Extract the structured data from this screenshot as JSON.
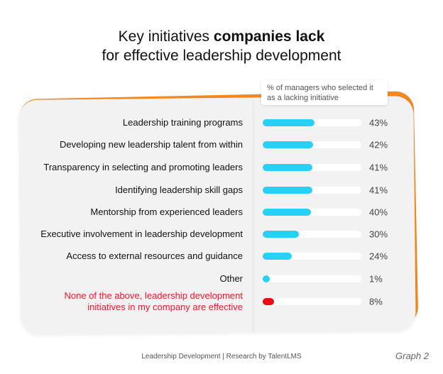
{
  "chart_data": {
    "type": "bar",
    "orientation": "horizontal",
    "title_line1_normal": "Key initiatives ",
    "title_line1_bold": "companies lack",
    "title_line2": "for effective leadership development",
    "legend_note": "% of managers who selected it as a lacking initiative",
    "xlim": [
      0,
      82
    ],
    "unit": "%",
    "categories": [
      "Leadership training programs",
      "Developing new leadership talent from within",
      "Transparency in selecting and promoting leaders",
      "Identifying leadership skill gaps",
      "Mentorship from experienced leaders",
      "Executive involvement in leadership development",
      "Access to external resources and guidance",
      "Other",
      "None of the above, leadership development initiatives in my company are effective"
    ],
    "category_lines": [
      [
        "Leadership training programs"
      ],
      [
        "Developing new leadership talent from within"
      ],
      [
        "Transparency in selecting and promoting leaders"
      ],
      [
        "Identifying leadership skill gaps"
      ],
      [
        "Mentorship from experienced leaders"
      ],
      [
        "Executive involvement in leadership development"
      ],
      [
        "Access to external resources and guidance"
      ],
      [
        "Other"
      ],
      [
        "None of the above, leadership development",
        "initiatives in my company are effective"
      ]
    ],
    "values": [
      43,
      42,
      41,
      41,
      40,
      30,
      24,
      1,
      8
    ],
    "value_labels": [
      "43%",
      "42%",
      "41%",
      "41%",
      "40%",
      "30%",
      "24%",
      "1%",
      "8%"
    ],
    "highlighted": [
      false,
      false,
      false,
      false,
      false,
      false,
      false,
      false,
      true
    ],
    "colors": {
      "bar": "#29d0f5",
      "highlight_bar": "#ee0a12",
      "highlight_text": "#f0182b",
      "track": "#ffffff",
      "accent": "#f7871f",
      "panel": "#f2f2f2"
    }
  },
  "footer": "Leadership Development | Research by TalentLMS",
  "graph_label": "Graph 2"
}
